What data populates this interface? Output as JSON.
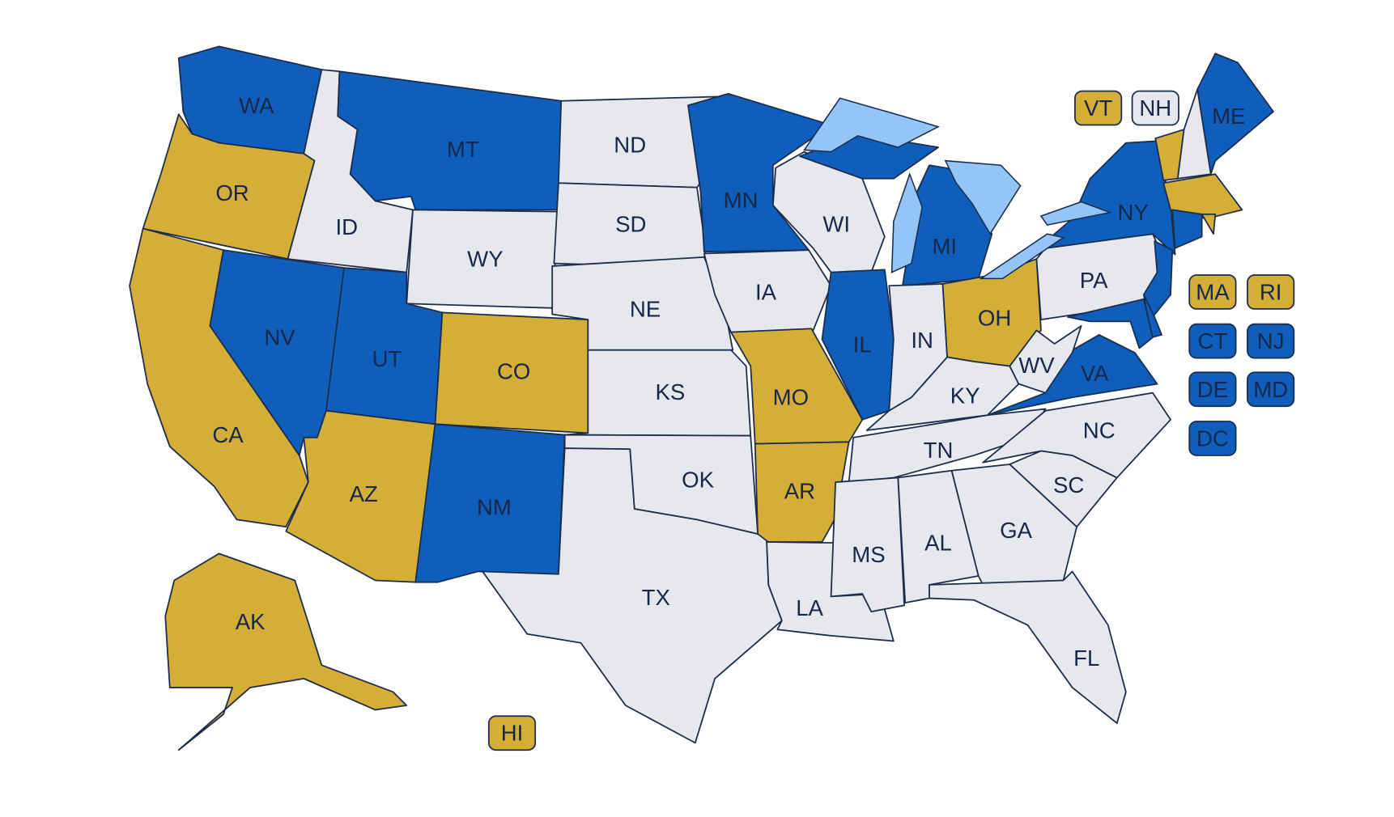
{
  "states": [
    {
      "label": "WA",
      "color": "#0f5ebc"
    },
    {
      "label": "OR",
      "color": "#d4ae36"
    },
    {
      "label": "CA",
      "color": "#d4ae36"
    },
    {
      "label": "NV",
      "color": "#0f5ebc"
    },
    {
      "label": "ID",
      "color": "#e6e8ed"
    },
    {
      "label": "MT",
      "color": "#0f5ebc"
    },
    {
      "label": "WY",
      "color": "#e6e8ed"
    },
    {
      "label": "UT",
      "color": "#0f5ebc"
    },
    {
      "label": "AZ",
      "color": "#d4ae36"
    },
    {
      "label": "CO",
      "color": "#d4ae36"
    },
    {
      "label": "NM",
      "color": "#0f5ebc"
    },
    {
      "label": "ND",
      "color": "#e6e8ed"
    },
    {
      "label": "SD",
      "color": "#e6e8ed"
    },
    {
      "label": "NE",
      "color": "#e6e8ed"
    },
    {
      "label": "KS",
      "color": "#e6e8ed"
    },
    {
      "label": "OK",
      "color": "#e6e8ed"
    },
    {
      "label": "TX",
      "color": "#e6e8ed"
    },
    {
      "label": "MN",
      "color": "#0f5ebc"
    },
    {
      "label": "IA",
      "color": "#e6e8ed"
    },
    {
      "label": "MO",
      "color": "#d4ae36"
    },
    {
      "label": "AR",
      "color": "#d4ae36"
    },
    {
      "label": "LA",
      "color": "#e6e8ed"
    },
    {
      "label": "WI",
      "color": "#e6e8ed"
    },
    {
      "label": "IL",
      "color": "#0f5ebc"
    },
    {
      "label": "MI",
      "color": "#0f5ebc"
    },
    {
      "label": "IN",
      "color": "#e6e8ed"
    },
    {
      "label": "OH",
      "color": "#d4ae36"
    },
    {
      "label": "KY",
      "color": "#e6e8ed"
    },
    {
      "label": "TN",
      "color": "#e6e8ed"
    },
    {
      "label": "MS",
      "color": "#e6e8ed"
    },
    {
      "label": "AL",
      "color": "#e6e8ed"
    },
    {
      "label": "GA",
      "color": "#e6e8ed"
    },
    {
      "label": "FL",
      "color": "#e6e8ed"
    },
    {
      "label": "SC",
      "color": "#e6e8ed"
    },
    {
      "label": "NC",
      "color": "#e6e8ed"
    },
    {
      "label": "VA",
      "color": "#0f5ebc"
    },
    {
      "label": "WV",
      "color": "#e6e8ed"
    },
    {
      "label": "PA",
      "color": "#e6e8ed"
    },
    {
      "label": "NY",
      "color": "#0f5ebc"
    },
    {
      "label": "ME",
      "color": "#0f5ebc"
    },
    {
      "label": "VT",
      "color": "#d4ae36"
    },
    {
      "label": "NH",
      "color": "#e6e8ed"
    },
    {
      "label": "MA",
      "color": "#d4ae36"
    },
    {
      "label": "RI",
      "color": "#d4ae36"
    },
    {
      "label": "CT",
      "color": "#0f5ebc"
    },
    {
      "label": "NJ",
      "color": "#0f5ebc"
    },
    {
      "label": "DE",
      "color": "#0f5ebc"
    },
    {
      "label": "MD",
      "color": "#0f5ebc"
    },
    {
      "label": "DC",
      "color": "#0f5ebc"
    },
    {
      "label": "AK",
      "color": "#d4ae36"
    },
    {
      "label": "HI",
      "color": "#d4ae36"
    }
  ]
}
